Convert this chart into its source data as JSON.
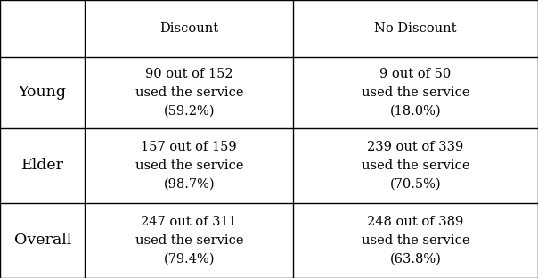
{
  "col_headers": [
    "",
    "Discount",
    "No Discount"
  ],
  "row_labels": [
    "Young",
    "Elder",
    "Overall"
  ],
  "cell_data": [
    [
      "90 out of 152\nused the service\n(59.2%)",
      "9 out of 50\nused the service\n(18.0%)"
    ],
    [
      "157 out of 159\nused the service\n(98.7%)",
      "239 out of 339\nused the service\n(70.5%)"
    ],
    [
      "247 out of 311\nused the service\n(79.4%)",
      "248 out of 389\nused the service\n(63.8%)"
    ]
  ],
  "font_size": 10.5,
  "header_font_size": 10.5,
  "row_label_font_size": 12.5,
  "bg_color": "#ffffff",
  "text_color": "#000000",
  "line_color": "#000000",
  "col_bounds": [
    0.0,
    0.158,
    0.545,
    1.0
  ],
  "row_bounds": [
    1.0,
    0.795,
    0.54,
    0.27,
    0.0
  ],
  "figsize": [
    6.04,
    3.12
  ],
  "dpi": 100
}
